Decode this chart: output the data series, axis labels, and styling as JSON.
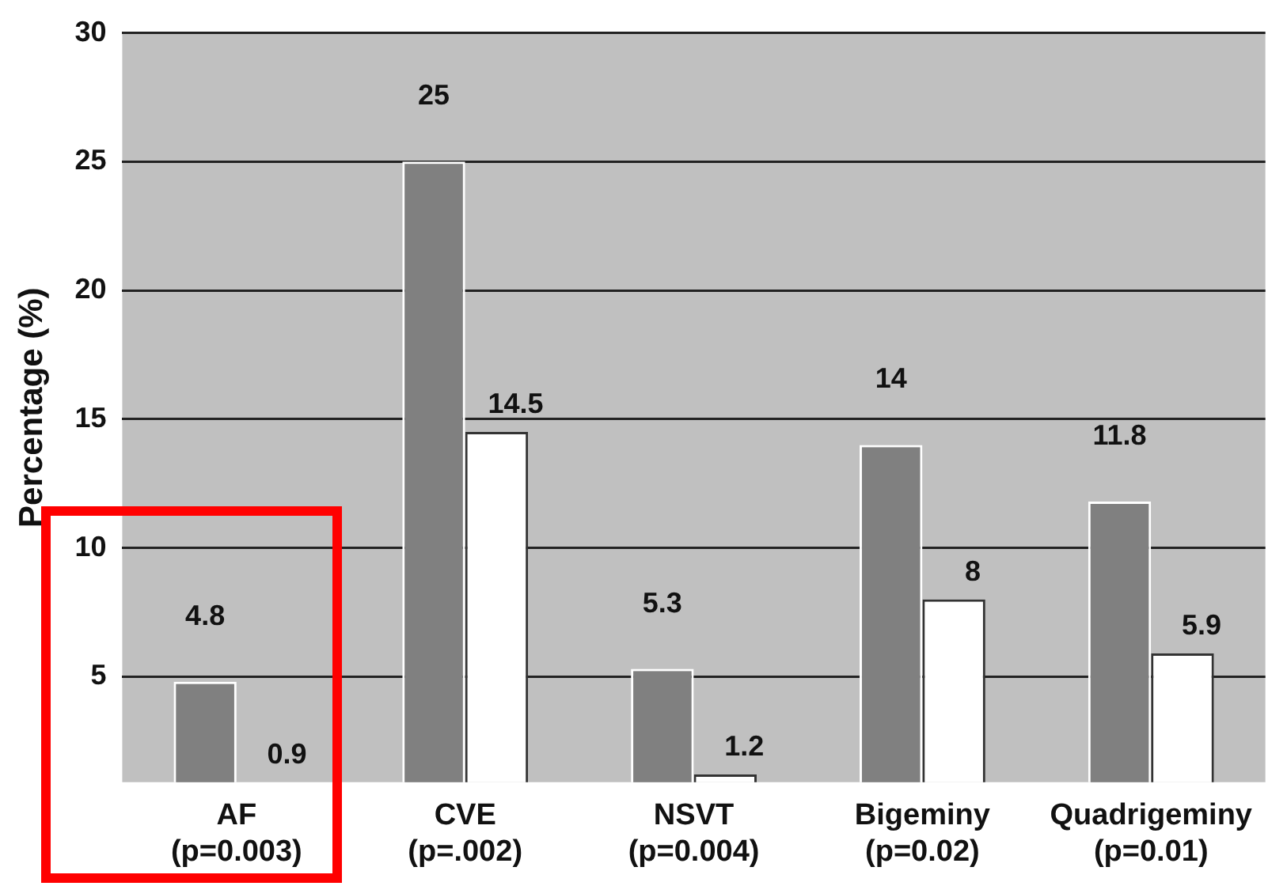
{
  "chart_data": {
    "type": "bar",
    "ylabel": "Percentage (%)",
    "categories": [
      "AF\n(p=0.003)",
      "CVE\n(p=.002)",
      "NSVT\n(p=0.004)",
      "Bigeminy\n(p=0.02)",
      "Quadrigeminy\n(p=0.01)"
    ],
    "series": [
      {
        "color": "#808080",
        "values": [
          4.8,
          25,
          5.3,
          14,
          11.8
        ]
      },
      {
        "color": "#ffffff",
        "values": [
          0.9,
          14.5,
          1.2,
          8,
          5.9
        ]
      }
    ],
    "ylim": [
      0.9,
      30
    ],
    "yticks": [
      5,
      10,
      15,
      20,
      25,
      30
    ],
    "grid": "y",
    "legend": false,
    "data_labels": true
  }
}
